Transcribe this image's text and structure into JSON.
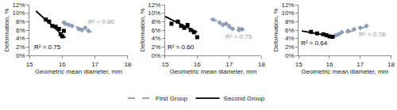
{
  "chart_data": [
    {
      "type": "scatter",
      "x_label": "Geometric mean diameter, mm",
      "y_label": "Deformation, %",
      "xlim": [
        15,
        18
      ],
      "xticks": [
        15,
        16,
        17,
        18
      ],
      "ylim": [
        0,
        12
      ],
      "yticks": [
        {
          "value": 0,
          "label": "0%"
        },
        {
          "value": 2,
          "label": "2%"
        },
        {
          "value": 4,
          "label": "4%"
        },
        {
          "value": 6,
          "label": "6%"
        },
        {
          "value": 8,
          "label": "8%"
        },
        {
          "value": 10,
          "label": "10%"
        },
        {
          "value": 12,
          "label": "12%"
        }
      ],
      "grid": false,
      "legend": "bottom",
      "series": [
        {
          "name": "First Group",
          "color": "#8c9db5",
          "marker": "diamond",
          "line_style": "dash",
          "x": [
            16.05,
            16.1,
            16.2,
            16.3,
            16.5,
            16.6,
            16.7,
            16.8
          ],
          "values": [
            7.8,
            7.5,
            7.2,
            7.0,
            6.3,
            6.0,
            6.5,
            5.8
          ],
          "trend": {
            "x": [
              16.0,
              16.9
            ],
            "values": [
              7.9,
              5.5
            ]
          }
        },
        {
          "name": "Second Group",
          "color": "#000000",
          "marker": "square",
          "line_style": "solid",
          "x": [
            15.5,
            15.6,
            15.7,
            15.8,
            15.9,
            15.95,
            16.0,
            16.05
          ],
          "values": [
            8.5,
            8.0,
            7.0,
            6.8,
            6.3,
            5.0,
            4.5,
            5.8
          ],
          "trend": {
            "x": [
              15.2,
              16.1
            ],
            "values": [
              10.5,
              4.2
            ]
          }
        }
      ],
      "annotations": [
        {
          "text": "R² = 0.80",
          "x": 17.2,
          "y": 8.0,
          "color": "#999999"
        },
        {
          "text": "R² = 0.75",
          "x": 15.55,
          "y": 2.0,
          "color": "#000000"
        }
      ]
    },
    {
      "type": "scatter",
      "x_label": "Geometric mean diameter, mm",
      "y_label": "Deformation, %",
      "xlim": [
        15,
        18
      ],
      "xticks": [
        15,
        16,
        17,
        18
      ],
      "ylim": [
        0,
        12
      ],
      "yticks": [
        {
          "value": 0,
          "label": "0%"
        },
        {
          "value": 2,
          "label": "2%"
        },
        {
          "value": 4,
          "label": "4%"
        },
        {
          "value": 6,
          "label": "6%"
        },
        {
          "value": 8,
          "label": "8%"
        },
        {
          "value": 10,
          "label": "10%"
        },
        {
          "value": 12,
          "label": "12%"
        }
      ],
      "grid": false,
      "series": [
        {
          "name": "First Group",
          "color": "#8c9db5",
          "marker": "diamond",
          "line_style": "dash",
          "x": [
            16.5,
            16.7,
            16.8,
            16.9,
            17.0,
            17.1,
            17.3,
            17.4
          ],
          "values": [
            8.5,
            7.8,
            7.2,
            7.5,
            6.8,
            6.3,
            6.0,
            6.2
          ],
          "trend": {
            "x": [
              16.4,
              17.5
            ],
            "values": [
              8.6,
              6.1
            ]
          }
        },
        {
          "name": "Second Group",
          "color": "#000000",
          "marker": "square",
          "line_style": "solid",
          "x": [
            15.2,
            15.4,
            15.5,
            15.6,
            15.7,
            15.8,
            15.9,
            16.0
          ],
          "values": [
            7.5,
            8.0,
            7.0,
            6.5,
            7.2,
            6.0,
            5.5,
            4.3
          ],
          "trend": {
            "x": [
              15.0,
              16.0
            ],
            "values": [
              9.2,
              5.5
            ]
          }
        }
      ],
      "annotations": [
        {
          "text": "R² = 0.75",
          "x": 17.3,
          "y": 4.5,
          "color": "#999999"
        },
        {
          "text": "R² = 0.60",
          "x": 15.5,
          "y": 2.0,
          "color": "#000000"
        }
      ]
    },
    {
      "type": "scatter",
      "x_label": "Geometric mean diameter, mm",
      "y_label": "Deformation, %",
      "xlim": [
        15,
        18
      ],
      "xticks": [
        15,
        16,
        17,
        18
      ],
      "ylim": [
        0,
        12
      ],
      "yticks": [
        {
          "value": 0,
          "label": "0%"
        },
        {
          "value": 2,
          "label": "2%"
        },
        {
          "value": 4,
          "label": "4%"
        },
        {
          "value": 6,
          "label": "6%"
        },
        {
          "value": 8,
          "label": "8%"
        },
        {
          "value": 10,
          "label": "10%"
        },
        {
          "value": 12,
          "label": "12%"
        }
      ],
      "grid": false,
      "series": [
        {
          "name": "First Group",
          "color": "#8c9db5",
          "marker": "diamond",
          "line_style": "dash",
          "x": [
            16.2,
            16.3,
            16.4,
            16.6,
            16.8,
            17.0,
            17.2
          ],
          "values": [
            4.8,
            5.0,
            5.5,
            5.8,
            6.2,
            6.5,
            7.0
          ],
          "trend": {
            "x": [
              16.1,
              17.3
            ],
            "values": [
              4.3,
              7.1
            ]
          }
        },
        {
          "name": "Second Group",
          "color": "#000000",
          "marker": "square",
          "line_style": "solid",
          "x": [
            15.4,
            15.6,
            15.8,
            15.9,
            16.0,
            16.1
          ],
          "values": [
            5.6,
            5.2,
            5.0,
            4.8,
            4.5,
            4.4
          ],
          "trend": {
            "x": [
              15.1,
              16.1
            ],
            "values": [
              5.8,
              4.5
            ]
          }
        }
      ],
      "annotations": [
        {
          "text": "R² = 0.78",
          "x": 17.4,
          "y": 5.0,
          "color": "#999999"
        },
        {
          "text": "R² = 0.64",
          "x": 15.5,
          "y": 3.0,
          "color": "#000000"
        }
      ]
    }
  ]
}
